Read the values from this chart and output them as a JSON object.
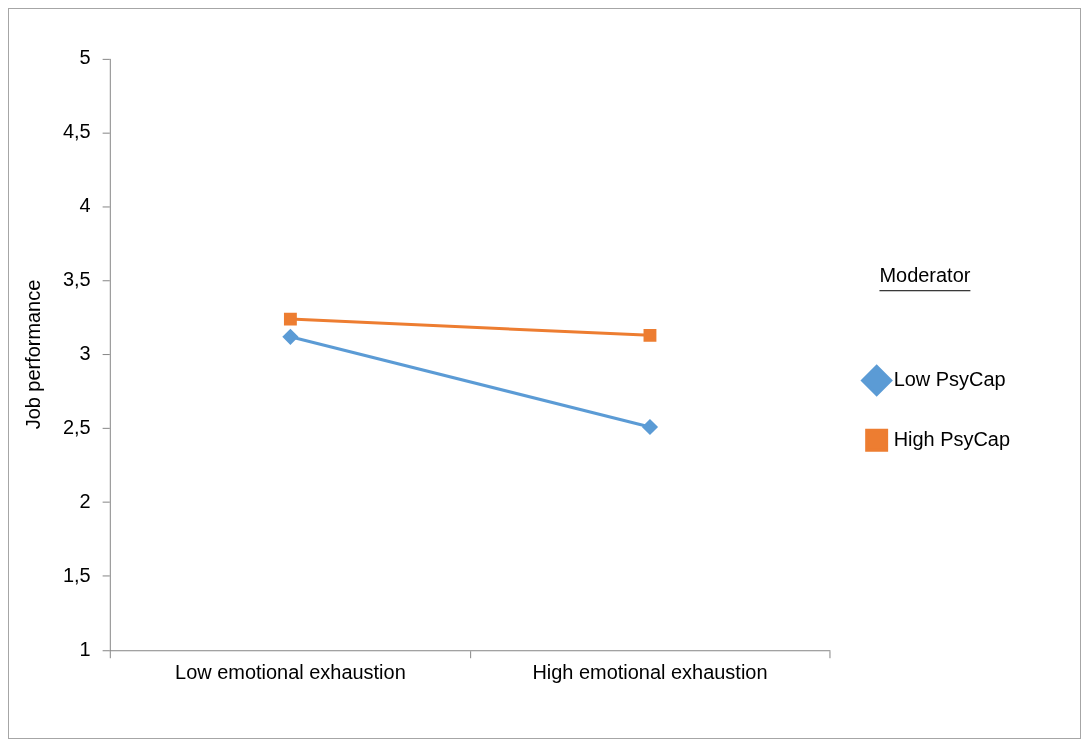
{
  "chart_data": {
    "type": "line",
    "ylabel": "Job performance",
    "legend_title": "Moderator",
    "categories": [
      "Low emotional exhaustion",
      "High emotional exhaustion"
    ],
    "series": [
      {
        "name": "Low PsyCap",
        "color": "#5b9bd5",
        "marker": "diamond",
        "values": [
          3.12,
          2.51
        ]
      },
      {
        "name": "High PsyCap",
        "color": "#ed7d31",
        "marker": "square",
        "values": [
          3.24,
          3.13
        ]
      }
    ],
    "ylim": [
      1,
      5
    ],
    "yticks": [
      1,
      {
        "value": 1.5,
        "label": "1,5"
      },
      2,
      {
        "value": 2.5,
        "label": "2,5"
      },
      3,
      {
        "value": 3.5,
        "label": "3,5"
      },
      4,
      {
        "value": 4.5,
        "label": "4,5"
      },
      5
    ],
    "grid": false,
    "legend": "right"
  }
}
